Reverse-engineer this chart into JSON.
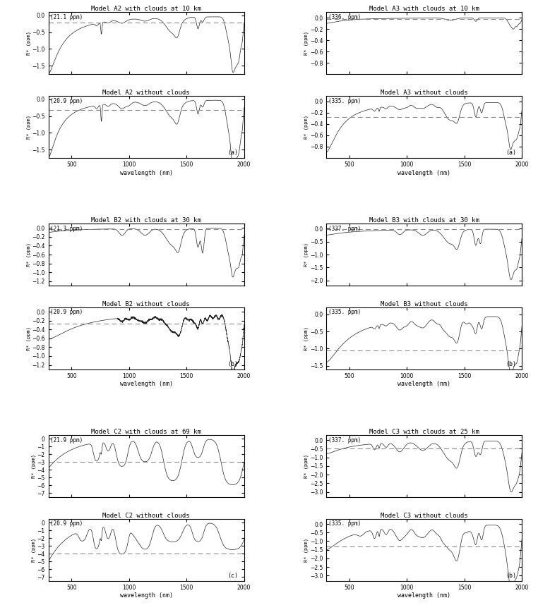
{
  "panels_left": [
    {
      "title": "Model A2 with clouds at 10 km",
      "ppm_label": "(21.1 ppm)",
      "ylim": [
        -1.75,
        0.1
      ],
      "yticks": [
        0.0,
        -0.5,
        -1.0,
        -1.5
      ],
      "dashed_y": -0.22,
      "curve_type": "A2_clouds",
      "label": null,
      "show_xlabel": false
    },
    {
      "title": "Model A2 without clouds",
      "ppm_label": "(20.9 ppm)",
      "ylim": [
        -1.75,
        0.1
      ],
      "yticks": [
        0.0,
        -0.5,
        -1.0,
        -1.5
      ],
      "dashed_y": -0.32,
      "curve_type": "A2_noclouds",
      "label": "(a)",
      "show_xlabel": true
    },
    {
      "title": "Model B2 with clouds at 30 km",
      "ppm_label": "(21.3 ppm)",
      "ylim": [
        -1.3,
        0.1
      ],
      "yticks": [
        0.0,
        -0.2,
        -0.4,
        -0.6,
        -0.8,
        -1.0,
        -1.2
      ],
      "dashed_y": -0.03,
      "curve_type": "B2_clouds",
      "label": null,
      "show_xlabel": false
    },
    {
      "title": "Model B2 without clouds",
      "ppm_label": "(20.9 ppm)",
      "ylim": [
        -1.3,
        0.1
      ],
      "yticks": [
        0.0,
        -0.2,
        -0.4,
        -0.6,
        -0.8,
        -1.0,
        -1.2
      ],
      "dashed_y": -0.27,
      "curve_type": "B2_noclouds",
      "label": "(b)",
      "show_xlabel": true
    },
    {
      "title": "Model C2 with clouds at 69 km",
      "ppm_label": "(21.9 ppm)",
      "ylim": [
        -7.5,
        0.5
      ],
      "yticks": [
        0,
        -1,
        -2,
        -3,
        -4,
        -5,
        -6,
        -7
      ],
      "dashed_y": -3.0,
      "curve_type": "C2_clouds",
      "label": null,
      "show_xlabel": false
    },
    {
      "title": "Model C2 without clouds",
      "ppm_label": "(20.9 ppm)",
      "ylim": [
        -7.5,
        0.5
      ],
      "yticks": [
        0,
        -1,
        -2,
        -3,
        -4,
        -5,
        -6,
        -7
      ],
      "dashed_y": -4.0,
      "curve_type": "C2_noclouds",
      "label": "(c)",
      "show_xlabel": true
    }
  ],
  "panels_right": [
    {
      "title": "Model A3 with clouds at 10 km",
      "ppm_label": "(336. ppm)",
      "ylim": [
        -1.0,
        0.1
      ],
      "yticks": [
        0.0,
        -0.2,
        -0.4,
        -0.6,
        -0.8
      ],
      "dashed_y": -0.02,
      "curve_type": "A3_clouds",
      "label": null,
      "show_xlabel": false
    },
    {
      "title": "Model A3 without clouds",
      "ppm_label": "(335. ppm)",
      "ylim": [
        -1.0,
        0.1
      ],
      "yticks": [
        0.0,
        -0.2,
        -0.4,
        -0.6,
        -0.8
      ],
      "dashed_y": -0.28,
      "curve_type": "A3_noclouds",
      "label": "(a)",
      "show_xlabel": true
    },
    {
      "title": "Model B3 with clouds at 30 km",
      "ppm_label": "(337. ppm)",
      "ylim": [
        -2.2,
        0.2
      ],
      "yticks": [
        0.0,
        -0.5,
        -1.0,
        -1.5,
        -2.0
      ],
      "dashed_y": -0.03,
      "curve_type": "B3_clouds",
      "label": null,
      "show_xlabel": false
    },
    {
      "title": "Model B3 without clouds",
      "ppm_label": "(335. ppm)",
      "ylim": [
        -1.6,
        0.2
      ],
      "yticks": [
        0.0,
        -0.5,
        -1.0,
        -1.5
      ],
      "dashed_y": -1.05,
      "curve_type": "B3_noclouds",
      "label": "(b)",
      "show_xlabel": true
    },
    {
      "title": "Model C3 with clouds at 25 km",
      "ppm_label": "(337. ppm)",
      "ylim": [
        -3.3,
        0.3
      ],
      "yticks": [
        0.0,
        -0.5,
        -1.0,
        -1.5,
        -2.0,
        -2.5,
        -3.0
      ],
      "dashed_y": -0.5,
      "curve_type": "C3_clouds",
      "label": null,
      "show_xlabel": false
    },
    {
      "title": "Model C3 without clouds",
      "ppm_label": "(335. ppm)",
      "ylim": [
        -3.3,
        0.3
      ],
      "yticks": [
        0.0,
        -0.5,
        -1.0,
        -1.5,
        -2.0,
        -2.5,
        -3.0
      ],
      "dashed_y": -1.3,
      "curve_type": "C3_noclouds",
      "label": "(b)",
      "show_xlabel": true
    }
  ],
  "xlim": [
    300,
    2000
  ],
  "xticks": [
    500,
    1000,
    1500,
    2000
  ],
  "xlabel": "wavelength (nm)",
  "line_color": "#222222",
  "dashed_color": "#888888",
  "bg_color": "#ffffff"
}
